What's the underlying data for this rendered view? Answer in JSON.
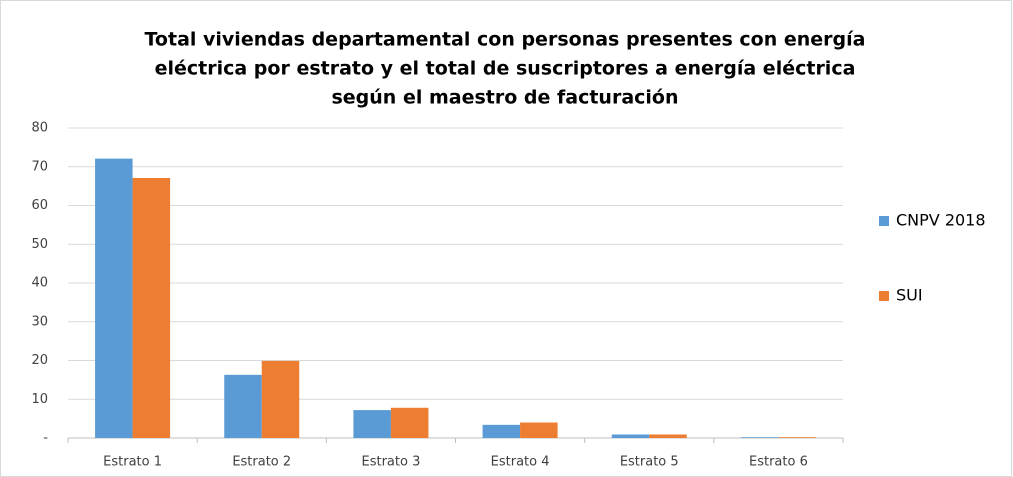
{
  "chart_data": {
    "type": "bar",
    "title": [
      "Total viviendas departamental con personas presentes con energía",
      "eléctrica por estrato y el total de suscriptores a energía eléctrica",
      "según el maestro de facturación"
    ],
    "categories": [
      "Estrato 1",
      "Estrato 2",
      "Estrato 3",
      "Estrato 4",
      "Estrato 5",
      "Estrato 6"
    ],
    "series": [
      {
        "name": "CNPV 2018",
        "color": "#5b9bd5",
        "values": [
          72.1,
          16.3,
          7.2,
          3.4,
          0.9,
          0.2
        ]
      },
      {
        "name": "SUI",
        "color": "#ed7d31",
        "values": [
          67.1,
          19.9,
          7.8,
          4.0,
          0.9,
          0.2
        ]
      }
    ],
    "ylim": [
      0,
      80
    ],
    "yticks": [
      {
        "value": 0,
        "label": "-"
      },
      10,
      20,
      30,
      40,
      50,
      60,
      70,
      80
    ],
    "grid": true,
    "legend": "right"
  }
}
